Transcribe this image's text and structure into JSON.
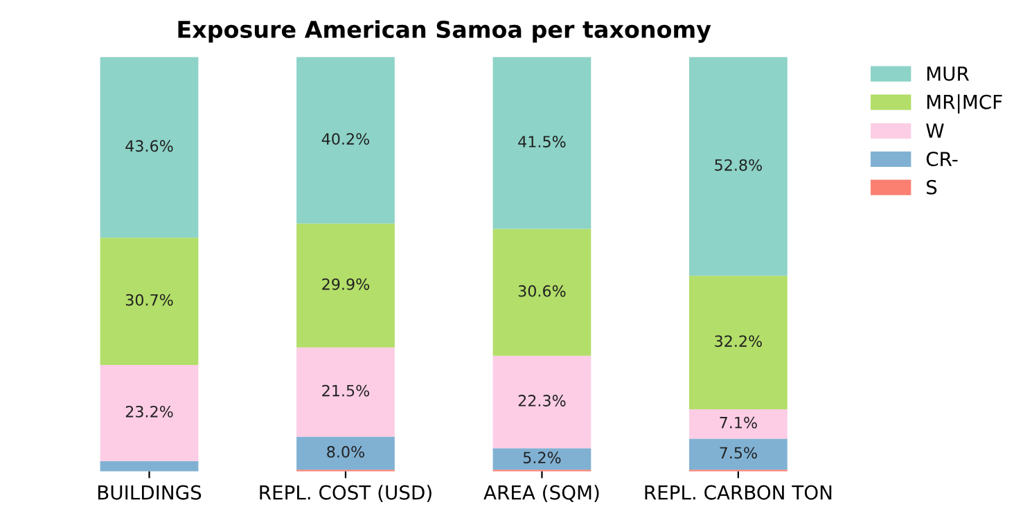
{
  "chart_data": {
    "type": "bar",
    "stacked": true,
    "title": "Exposure American Samoa per taxonomy",
    "categories": [
      "BUILDINGS",
      "REPL. COST (USD)",
      "AREA (SQM)",
      "REPL. CARBON TON"
    ],
    "series": [
      {
        "name": "S",
        "color": "#fb8072",
        "values": [
          null,
          0.4,
          0.4,
          0.4
        ],
        "value_labels": [
          null,
          null,
          null,
          null
        ]
      },
      {
        "name": "CR-",
        "color": "#80b1d3",
        "values": [
          2.5,
          8.0,
          5.2,
          7.5
        ],
        "value_labels": [
          null,
          "8.0%",
          "5.2%",
          "7.5%"
        ]
      },
      {
        "name": "W",
        "color": "#fccde5",
        "values": [
          23.2,
          21.5,
          22.3,
          7.1
        ],
        "value_labels": [
          "23.2%",
          "21.5%",
          "22.3%",
          "7.1%"
        ]
      },
      {
        "name": "MR|MCF",
        "color": "#b3de69",
        "values": [
          30.7,
          29.9,
          30.6,
          32.2
        ],
        "value_labels": [
          "30.7%",
          "29.9%",
          "30.6%",
          "32.2%"
        ]
      },
      {
        "name": "MUR",
        "color": "#8dd3c7",
        "values": [
          43.6,
          40.2,
          41.5,
          52.8
        ],
        "value_labels": [
          "43.6%",
          "40.2%",
          "41.5%",
          "52.8%"
        ]
      }
    ],
    "legend": "top right",
    "grid": false
  }
}
